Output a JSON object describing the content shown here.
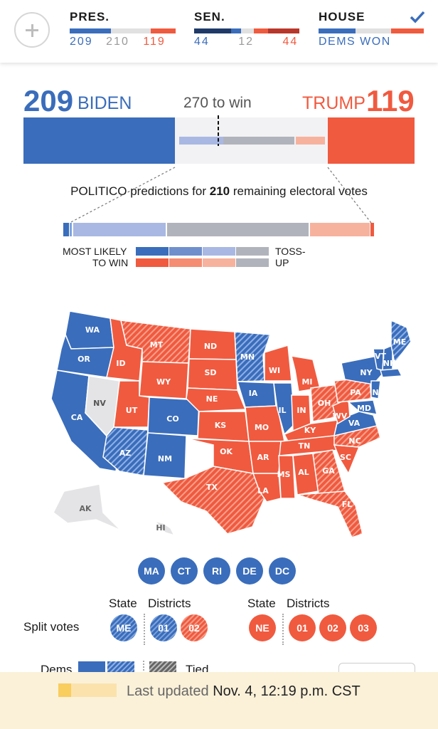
{
  "header": {
    "president": {
      "label": "PRES.",
      "dem": "209",
      "undecided": "210",
      "rep": "119"
    },
    "senate": {
      "label": "SEN.",
      "dem": "44",
      "undecided": "12",
      "rep": "44"
    },
    "house": {
      "label": "HOUSE",
      "status": "DEMS WON"
    }
  },
  "headline": {
    "dem_votes": "209",
    "dem_name": "BIDEN",
    "threshold": "270 to win",
    "rep_name": "TRUMP",
    "rep_votes": "119"
  },
  "predictions": {
    "text_pre": "POLITICO predictions for ",
    "remaining": "210",
    "text_post": " remaining electoral votes",
    "legend_left_1": "MOST LIKELY",
    "legend_left_2": "TO WIN",
    "legend_right_1": "TOSS-",
    "legend_right_2": "UP"
  },
  "map": {
    "states": [
      "WA",
      "OR",
      "CA",
      "NV",
      "ID",
      "MT",
      "WY",
      "UT",
      "AZ",
      "CO",
      "NM",
      "ND",
      "SD",
      "NE",
      "KS",
      "OK",
      "TX",
      "MN",
      "IA",
      "MO",
      "AR",
      "LA",
      "WI",
      "IL",
      "MI",
      "IN",
      "KY",
      "TN",
      "MS",
      "AL",
      "GA",
      "FL",
      "SC",
      "NC",
      "VA",
      "WV",
      "OH",
      "PA",
      "NY",
      "VT",
      "NH",
      "ME",
      "NJ",
      "MD",
      "AK",
      "HI"
    ],
    "small_states": [
      "MA",
      "CT",
      "RI",
      "DE",
      "DC"
    ]
  },
  "split_votes": {
    "label": "Split votes",
    "state_header_1": "State",
    "districts_header_1": "Districts",
    "state_header_2": "State",
    "districts_header_2": "Districts",
    "me": "ME",
    "me_d1": "01",
    "me_d2": "02",
    "ne": "NE",
    "ne_d1": "01",
    "ne_d2": "02",
    "ne_d3": "03"
  },
  "legend_partial": {
    "dems": "Dems",
    "tied": "Tied"
  },
  "footer": {
    "prefix": "Last updated",
    "timestamp": "Nov. 4, 12:19 p.m. CST"
  },
  "colors": {
    "dem": "#3a6dbb",
    "rep": "#f05a3f",
    "tossup": "#b1b3bc",
    "undecided": "#e4e4e6"
  }
}
